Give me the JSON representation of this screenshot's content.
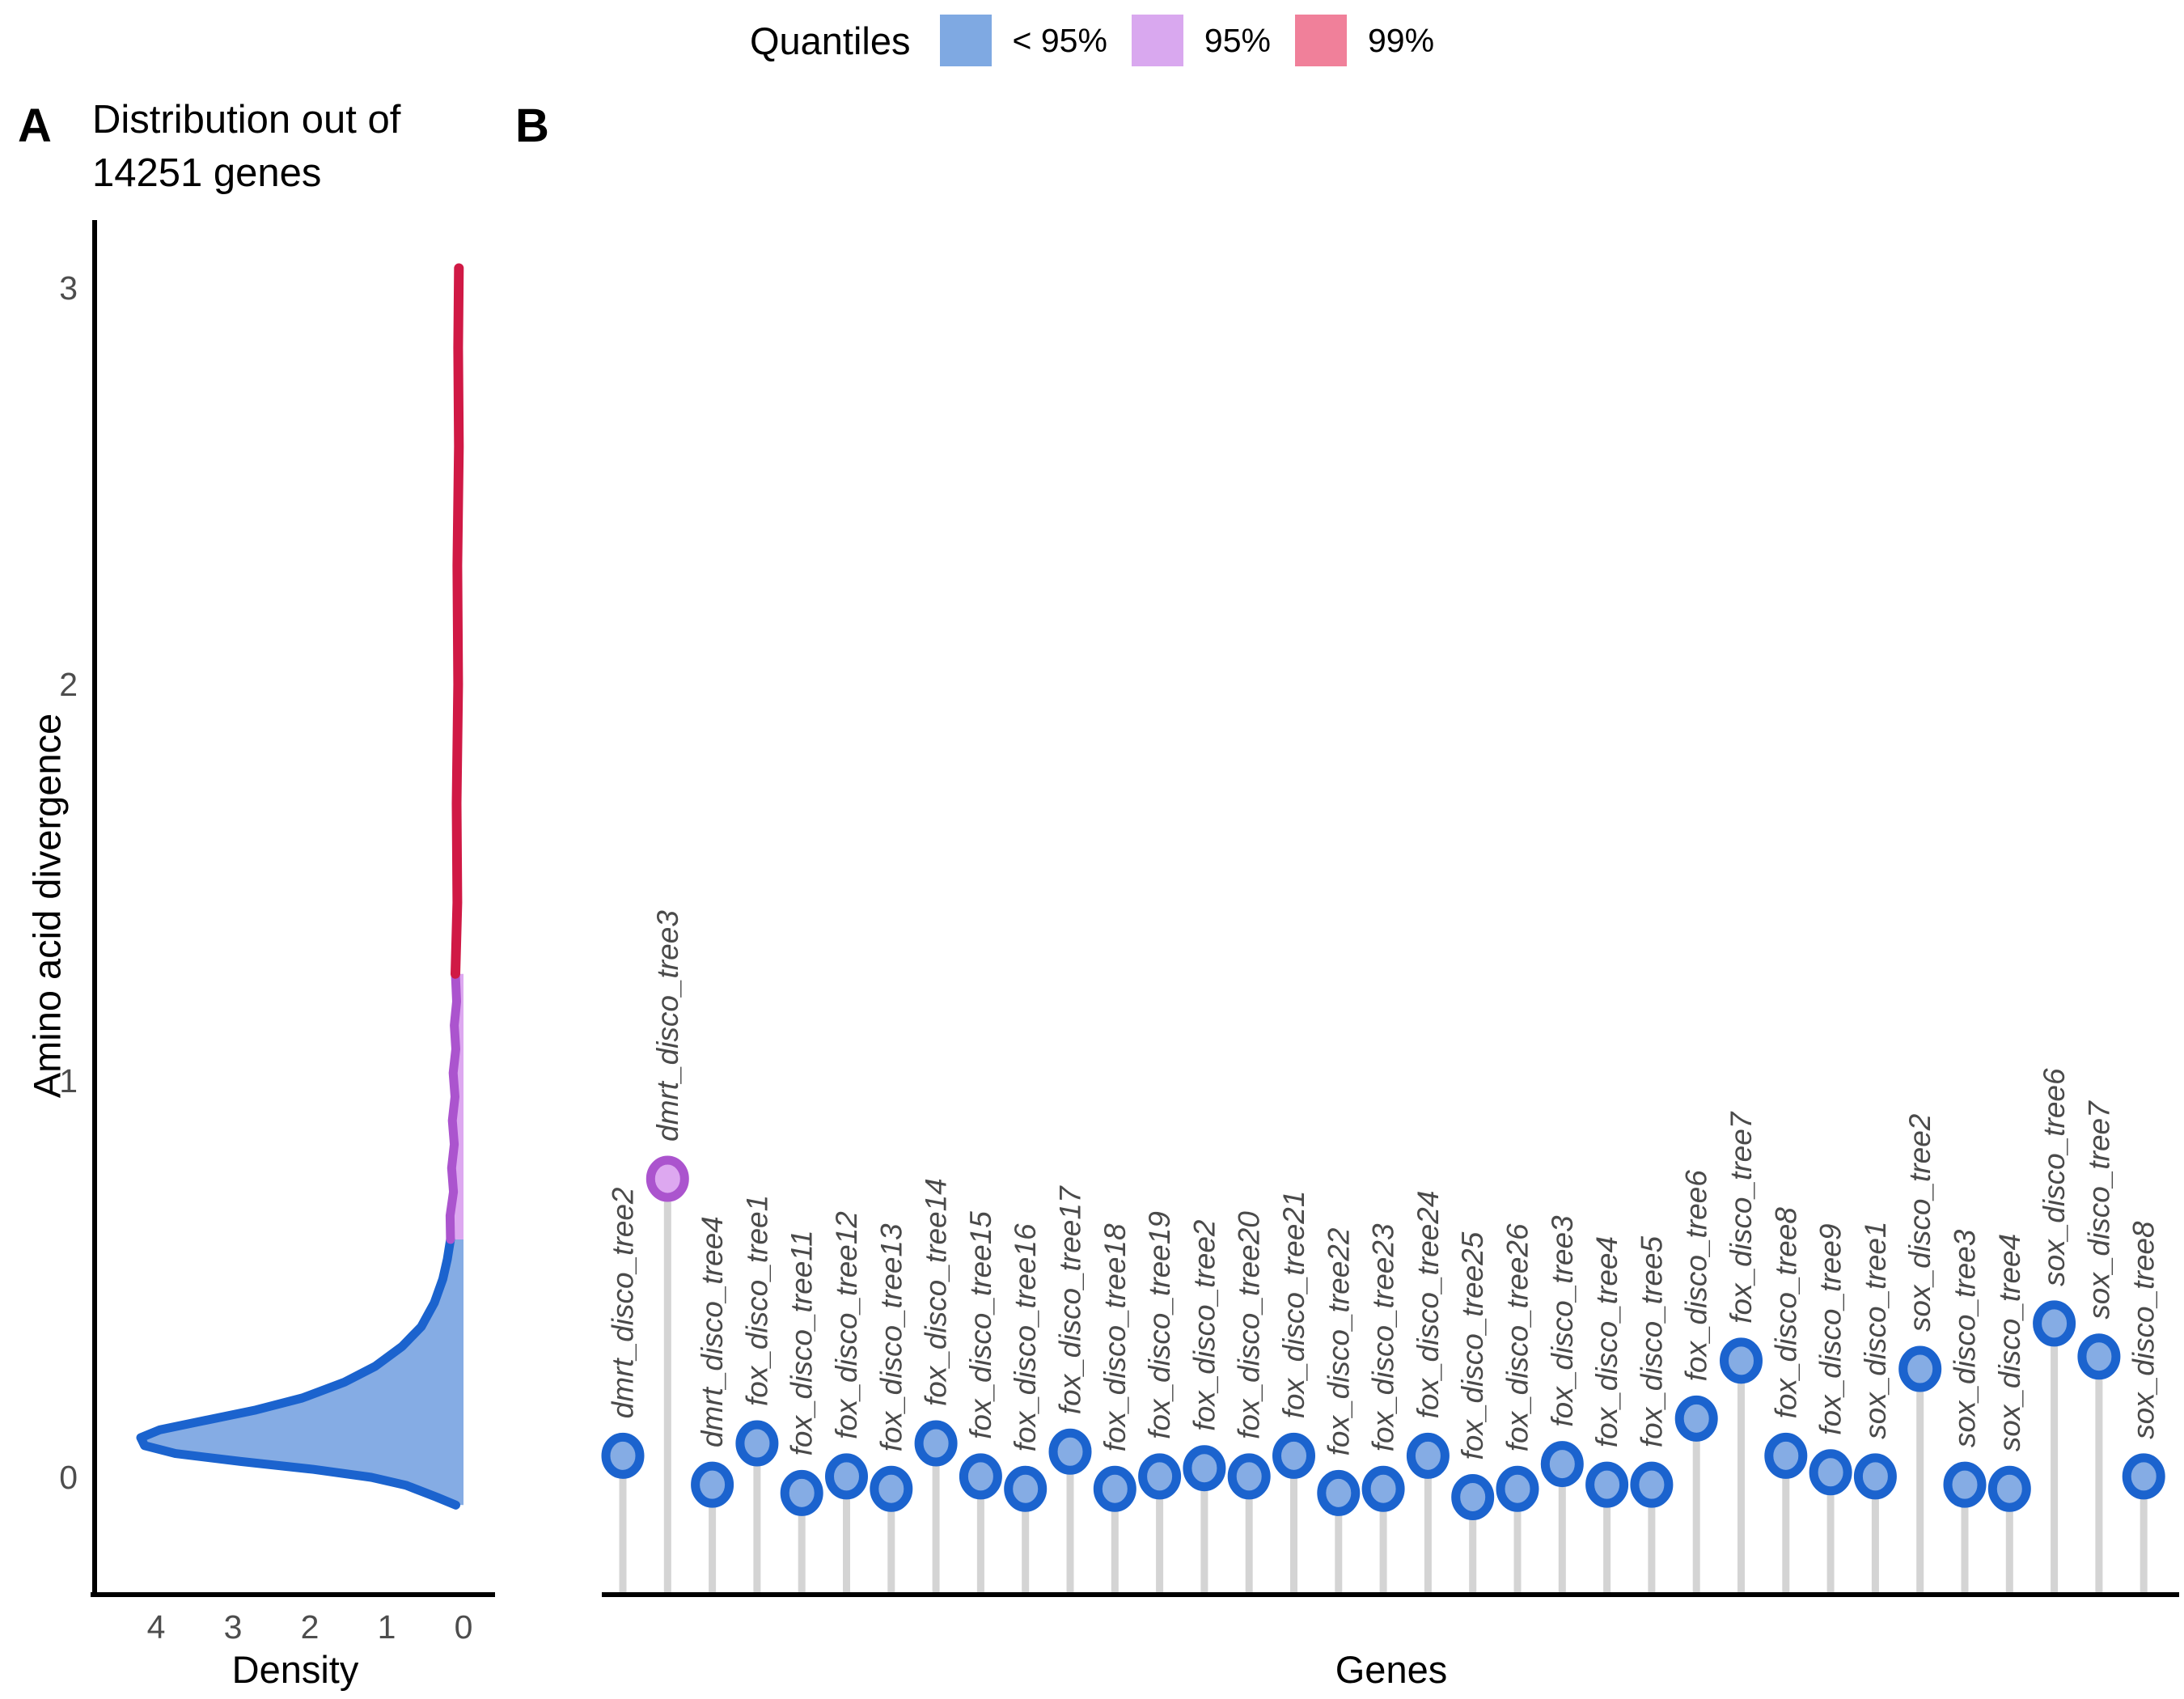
{
  "figure": {
    "legend": {
      "title": "Quantiles",
      "items": [
        {
          "label": "< 95%",
          "color": "#7FA9E2"
        },
        {
          "label": "95%",
          "color": "#D9A8EF"
        },
        {
          "label": "99%",
          "color": "#F0809A"
        }
      ]
    },
    "panels": {
      "a": {
        "tag": "A",
        "title_line1": "Distribution out of",
        "title_line2": "14251 genes",
        "xlabel": "Density",
        "ylabel": "Amino acid divergence"
      },
      "b": {
        "tag": "B",
        "xlabel": "Genes"
      }
    }
  },
  "style": {
    "blue_fill": "#85ACE4",
    "blue_stroke": "#1B63CE",
    "violet_fill": "#DDA8F0",
    "violet_stroke": "#AB54CE",
    "red_stroke": "#D01945",
    "stem_color": "#D4D4D4",
    "axis_color": "#000000",
    "tick_text_color": "#4D4D4D",
    "gene_label_color": "#4A4A4A"
  },
  "chart_data": [
    {
      "panel": "A",
      "type": "area",
      "title": "Distribution out of 14251 genes",
      "xlabel": "Density",
      "ylabel": "Amino acid divergence",
      "orientation": "density on x (reversed), divergence on y",
      "x_ticks": [
        4,
        3,
        2,
        1,
        0
      ],
      "y_ticks": [
        0,
        1,
        2,
        3
      ],
      "xlim_density": [
        4.8,
        -0.4
      ],
      "ylim_divergence": [
        -0.3,
        3.2
      ],
      "grid": false,
      "quantile_boundaries": {
        "q95_divergence": 0.6,
        "q99_divergence": 1.27,
        "max_divergence": 3.05,
        "peak_density": 4.2,
        "peak_at_divergence": 0.1
      },
      "series": [
        {
          "name": "< 95%",
          "points_divergence_density": [
            [
              -0.07,
              0.1
            ],
            [
              -0.05,
              0.35
            ],
            [
              -0.02,
              0.75
            ],
            [
              0.0,
              1.2
            ],
            [
              0.02,
              1.95
            ],
            [
              0.04,
              2.9
            ],
            [
              0.06,
              3.75
            ],
            [
              0.08,
              4.15
            ],
            [
              0.1,
              4.2
            ],
            [
              0.12,
              3.95
            ],
            [
              0.14,
              3.45
            ],
            [
              0.17,
              2.7
            ],
            [
              0.2,
              2.1
            ],
            [
              0.24,
              1.55
            ],
            [
              0.28,
              1.15
            ],
            [
              0.33,
              0.8
            ],
            [
              0.38,
              0.55
            ],
            [
              0.44,
              0.38
            ],
            [
              0.5,
              0.27
            ],
            [
              0.55,
              0.21
            ],
            [
              0.6,
              0.17
            ]
          ]
        },
        {
          "name": "95%",
          "points_divergence_density": [
            [
              0.6,
              0.17
            ],
            [
              0.66,
              0.175
            ],
            [
              0.72,
              0.13
            ],
            [
              0.78,
              0.155
            ],
            [
              0.84,
              0.12
            ],
            [
              0.9,
              0.145
            ],
            [
              0.96,
              0.11
            ],
            [
              1.02,
              0.135
            ],
            [
              1.08,
              0.1
            ],
            [
              1.14,
              0.12
            ],
            [
              1.2,
              0.09
            ],
            [
              1.27,
              0.105
            ]
          ]
        },
        {
          "name": "99%",
          "points_divergence_density": [
            [
              1.27,
              0.105
            ],
            [
              1.45,
              0.08
            ],
            [
              1.7,
              0.09
            ],
            [
              2.0,
              0.07
            ],
            [
              2.3,
              0.08
            ],
            [
              2.6,
              0.06
            ],
            [
              2.85,
              0.07
            ],
            [
              3.05,
              0.06
            ]
          ]
        }
      ]
    },
    {
      "panel": "B",
      "type": "lollipop",
      "xlabel": "Genes",
      "value_unit": "stem height relative to tallest point (dmrt_disco_tree3 = 1.0); no y tick labels shown in figure",
      "genes": [
        {
          "name": "dmrt_disco_tree2",
          "value": 0.33,
          "quantile": "< 95%"
        },
        {
          "name": "dmrt_disco_tree3",
          "value": 1.0,
          "quantile": "95%"
        },
        {
          "name": "dmrt_disco_tree4",
          "value": 0.26,
          "quantile": "< 95%"
        },
        {
          "name": "fox_disco_tree1",
          "value": 0.36,
          "quantile": "< 95%"
        },
        {
          "name": "fox_disco_tree11",
          "value": 0.24,
          "quantile": "< 95%"
        },
        {
          "name": "fox_disco_tree12",
          "value": 0.28,
          "quantile": "< 95%"
        },
        {
          "name": "fox_disco_tree13",
          "value": 0.25,
          "quantile": "< 95%"
        },
        {
          "name": "fox_disco_tree14",
          "value": 0.36,
          "quantile": "< 95%"
        },
        {
          "name": "fox_disco_tree15",
          "value": 0.28,
          "quantile": "< 95%"
        },
        {
          "name": "fox_disco_tree16",
          "value": 0.25,
          "quantile": "< 95%"
        },
        {
          "name": "fox_disco_tree17",
          "value": 0.34,
          "quantile": "< 95%"
        },
        {
          "name": "fox_disco_tree18",
          "value": 0.25,
          "quantile": "< 95%"
        },
        {
          "name": "fox_disco_tree19",
          "value": 0.28,
          "quantile": "< 95%"
        },
        {
          "name": "fox_disco_tree2",
          "value": 0.3,
          "quantile": "< 95%"
        },
        {
          "name": "fox_disco_tree20",
          "value": 0.28,
          "quantile": "< 95%"
        },
        {
          "name": "fox_disco_tree21",
          "value": 0.33,
          "quantile": "< 95%"
        },
        {
          "name": "fox_disco_tree22",
          "value": 0.24,
          "quantile": "< 95%"
        },
        {
          "name": "fox_disco_tree23",
          "value": 0.25,
          "quantile": "< 95%"
        },
        {
          "name": "fox_disco_tree24",
          "value": 0.33,
          "quantile": "< 95%"
        },
        {
          "name": "fox_disco_tree25",
          "value": 0.23,
          "quantile": "< 95%"
        },
        {
          "name": "fox_disco_tree26",
          "value": 0.25,
          "quantile": "< 95%"
        },
        {
          "name": "fox_disco_tree3",
          "value": 0.31,
          "quantile": "< 95%"
        },
        {
          "name": "fox_disco_tree4",
          "value": 0.26,
          "quantile": "< 95%"
        },
        {
          "name": "fox_disco_tree5",
          "value": 0.26,
          "quantile": "< 95%"
        },
        {
          "name": "fox_disco_tree6",
          "value": 0.42,
          "quantile": "< 95%"
        },
        {
          "name": "fox_disco_tree7",
          "value": 0.56,
          "quantile": "< 95%"
        },
        {
          "name": "fox_disco_tree8",
          "value": 0.33,
          "quantile": "< 95%"
        },
        {
          "name": "fox_disco_tree9",
          "value": 0.29,
          "quantile": "< 95%"
        },
        {
          "name": "sox_disco_tree1",
          "value": 0.28,
          "quantile": "< 95%"
        },
        {
          "name": "sox_disco_tree2",
          "value": 0.54,
          "quantile": "< 95%"
        },
        {
          "name": "sox_disco_tree3",
          "value": 0.26,
          "quantile": "< 95%"
        },
        {
          "name": "sox_disco_tree4",
          "value": 0.25,
          "quantile": "< 95%"
        },
        {
          "name": "sox_disco_tree6",
          "value": 0.65,
          "quantile": "< 95%"
        },
        {
          "name": "sox_disco_tree7",
          "value": 0.57,
          "quantile": "< 95%"
        },
        {
          "name": "sox_disco_tree8",
          "value": 0.28,
          "quantile": "< 95%"
        }
      ]
    }
  ]
}
